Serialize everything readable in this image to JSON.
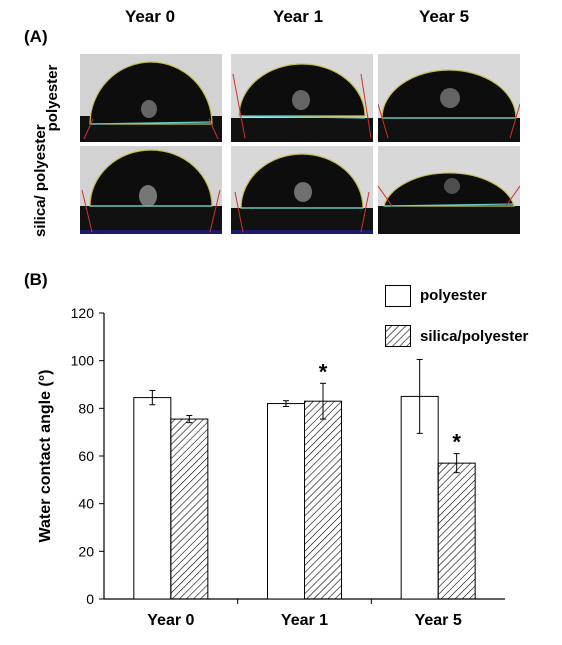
{
  "panel_a": {
    "label": "(A)",
    "columns": [
      "Year 0",
      "Year 1",
      "Year 5"
    ],
    "rows": [
      "polyester",
      "silica/ polyester"
    ]
  },
  "panel_b": {
    "label": "(B)"
  },
  "chart_data": {
    "type": "bar",
    "categories": [
      "Year 0",
      "Year 1",
      "Year 5"
    ],
    "series": [
      {
        "name": "polyester",
        "values": [
          84.5,
          82,
          85
        ],
        "errors": [
          3,
          1.2,
          15.5
        ],
        "fill": "white"
      },
      {
        "name": "silica/polyester",
        "values": [
          75.5,
          83,
          57
        ],
        "errors": [
          1.5,
          7.5,
          4
        ],
        "fill": "hatched"
      }
    ],
    "ylabel": "Water contact angle (°)",
    "xlabel": "",
    "ylim": [
      0,
      120
    ],
    "yticks": [
      0,
      20,
      40,
      60,
      80,
      100,
      120
    ],
    "significance_marks": [
      {
        "category": "Year 1",
        "series": "silica/polyester",
        "symbol": "*"
      },
      {
        "category": "Year 5",
        "series": "silica/polyester",
        "symbol": "*"
      }
    ],
    "legend_position": "top-right",
    "grid": false
  }
}
